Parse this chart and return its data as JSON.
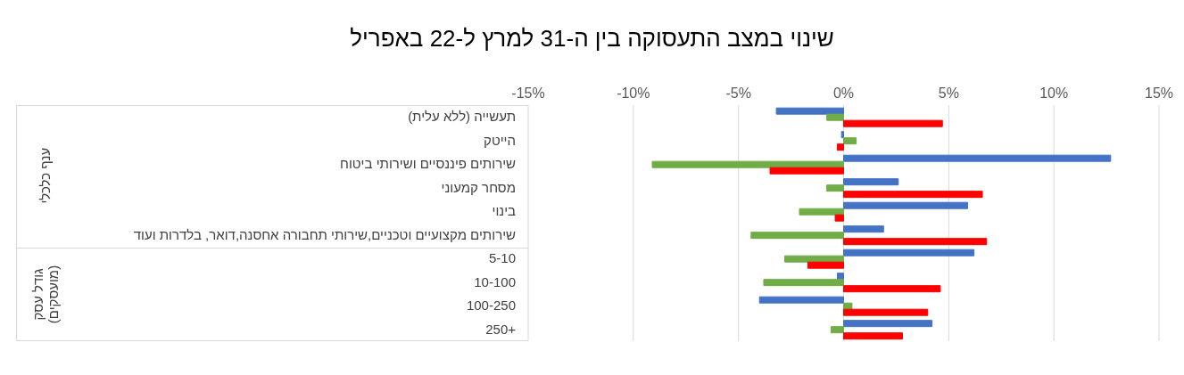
{
  "chart_data": {
    "type": "bar",
    "orientation": "horizontal",
    "title": "שינוי במצב התעסוקה בין ה-31 למרץ ל-22 באפריל",
    "categories": [
      "תעשייה (ללא  עלית)",
      "הייטק",
      "שירותים פיננסיים ושירותי ביטוח",
      "מסחר קמעוני",
      "בינוי",
      "שירותים מקצועיים וטכניים,שירותי תחבורה אחסנה,דואר, בלדרות ועוד",
      "5-10",
      "10-100",
      "100-250",
      "+250"
    ],
    "series": [
      {
        "color": "#4472c4",
        "values": [
          -3.2,
          -0.1,
          12.7,
          2.6,
          5.9,
          1.9,
          6.2,
          -0.3,
          -4.0,
          4.2
        ]
      },
      {
        "color": "#70ad47",
        "values": [
          -0.8,
          0.6,
          -9.1,
          -0.8,
          -2.1,
          -4.4,
          -2.8,
          -3.8,
          0.4,
          -0.6
        ]
      },
      {
        "color": "#ff0000",
        "values": [
          4.7,
          -0.3,
          -3.5,
          6.6,
          -0.4,
          6.8,
          -1.7,
          4.6,
          4.0,
          2.8
        ]
      }
    ],
    "xlim": [
      -15,
      15
    ],
    "xticks": [
      {
        "value": -15,
        "label": "-15%"
      },
      {
        "value": -10,
        "label": "-10%"
      },
      {
        "value": -5,
        "label": "-5%"
      },
      {
        "value": 0,
        "label": "0%"
      },
      {
        "value": 5,
        "label": "5%"
      },
      {
        "value": 10,
        "label": "10%"
      },
      {
        "value": 15,
        "label": "15%"
      }
    ],
    "grid": "x",
    "annotations": [
      "ענף כלכלי",
      "גודל עסק (מועסקים)"
    ]
  }
}
